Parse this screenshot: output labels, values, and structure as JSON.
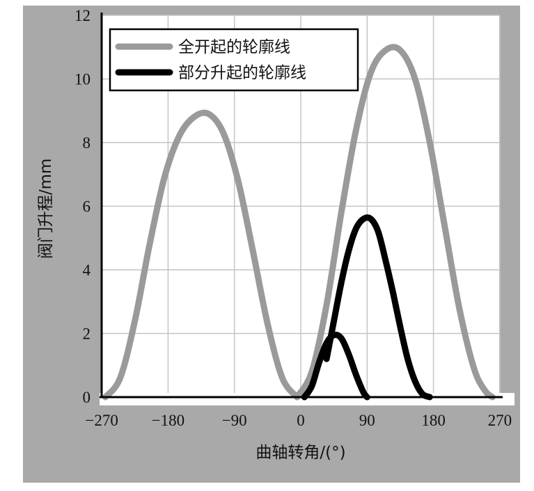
{
  "chart_data": {
    "type": "line",
    "xlabel": "曲轴转角/(°)",
    "ylabel": "阀门升程/mm",
    "xlim": [
      -270,
      270
    ],
    "ylim": [
      0,
      12
    ],
    "x_ticks": [
      "−270",
      "−180",
      "−90",
      "0",
      "90",
      "180",
      "270"
    ],
    "y_ticks": [
      "0",
      "2",
      "4",
      "6",
      "8",
      "10",
      "12"
    ],
    "grid": true,
    "legend_position": "top-left",
    "series": [
      {
        "name": "全开起的轮廓线",
        "color": "#9a9a9a",
        "segments": [
          {
            "x": [
              -265,
              -245,
              -225,
              -205,
              -185,
              -165,
              -145,
              -125,
              -105,
              -85,
              -65,
              -45,
              -25,
              -5
            ],
            "y": [
              0,
              0.6,
              2.4,
              4.8,
              6.9,
              8.2,
              8.8,
              8.9,
              8.3,
              6.8,
              4.6,
              2.3,
              0.6,
              0
            ]
          },
          {
            "x": [
              -5,
              15,
              35,
              55,
              75,
              95,
              115,
              135,
              155,
              175,
              195,
              215,
              235,
              250,
              260
            ],
            "y": [
              0,
              0.8,
              2.9,
              5.8,
              8.4,
              10.2,
              10.9,
              10.9,
              10.0,
              8.0,
              5.4,
              2.8,
              0.9,
              0.2,
              0
            ]
          }
        ]
      },
      {
        "name": "部分升起的轮廓线",
        "color": "#000000",
        "segments": [
          {
            "x": [
              5,
              15,
              25,
              35,
              45,
              55,
              65,
              75,
              85,
              90
            ],
            "y": [
              0,
              0.35,
              1.1,
              1.7,
              1.95,
              1.85,
              1.35,
              0.7,
              0.15,
              0
            ]
          },
          {
            "x": [
              35,
              45,
              55,
              65,
              75,
              85,
              95,
              105,
              115,
              125,
              135,
              145,
              155,
              165,
              175
            ],
            "y": [
              1.2,
              2.4,
              3.6,
              4.6,
              5.3,
              5.6,
              5.6,
              5.2,
              4.3,
              3.3,
              2.2,
              1.2,
              0.5,
              0.1,
              0
            ]
          }
        ]
      }
    ]
  }
}
